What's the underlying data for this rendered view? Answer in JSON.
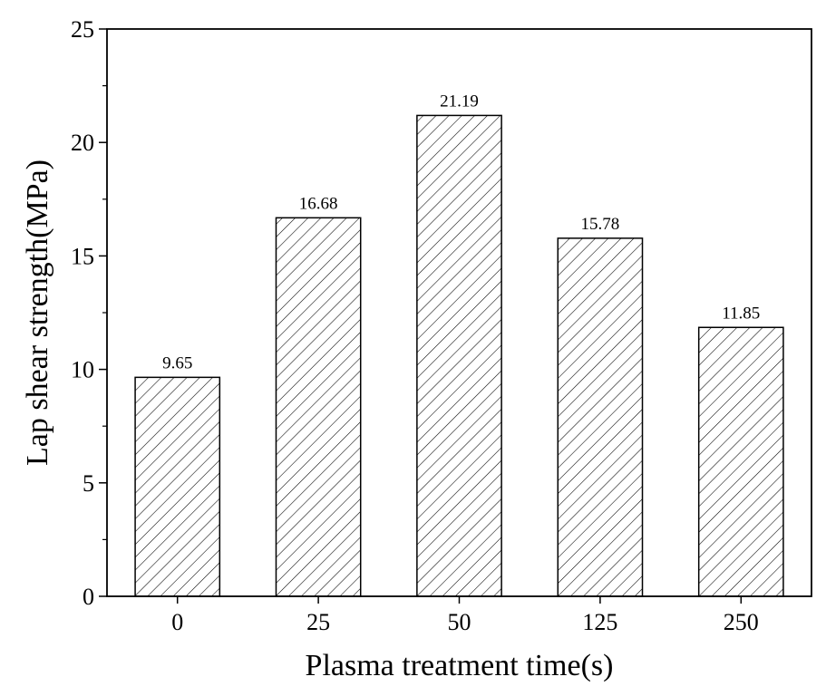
{
  "chart_data": {
    "type": "bar",
    "title": "",
    "xlabel": "Plasma treatment time(s)",
    "ylabel": "Lap shear strength(MPa)",
    "categories": [
      "0",
      "25",
      "50",
      "125",
      "250"
    ],
    "values": [
      9.65,
      16.68,
      21.19,
      15.78,
      11.85
    ],
    "data_labels": [
      "9.65",
      "16.68",
      "21.19",
      "15.78",
      "11.85"
    ],
    "ylim": [
      0,
      25
    ],
    "yticks": [
      0,
      5,
      10,
      15,
      20,
      25
    ],
    "ytick_labels": [
      "0",
      "5",
      "10",
      "15",
      "20",
      "25"
    ],
    "grid": false,
    "bar_fill": "hatched diagonal",
    "bar_color": "#ffffff",
    "edge_color": "#000000"
  }
}
